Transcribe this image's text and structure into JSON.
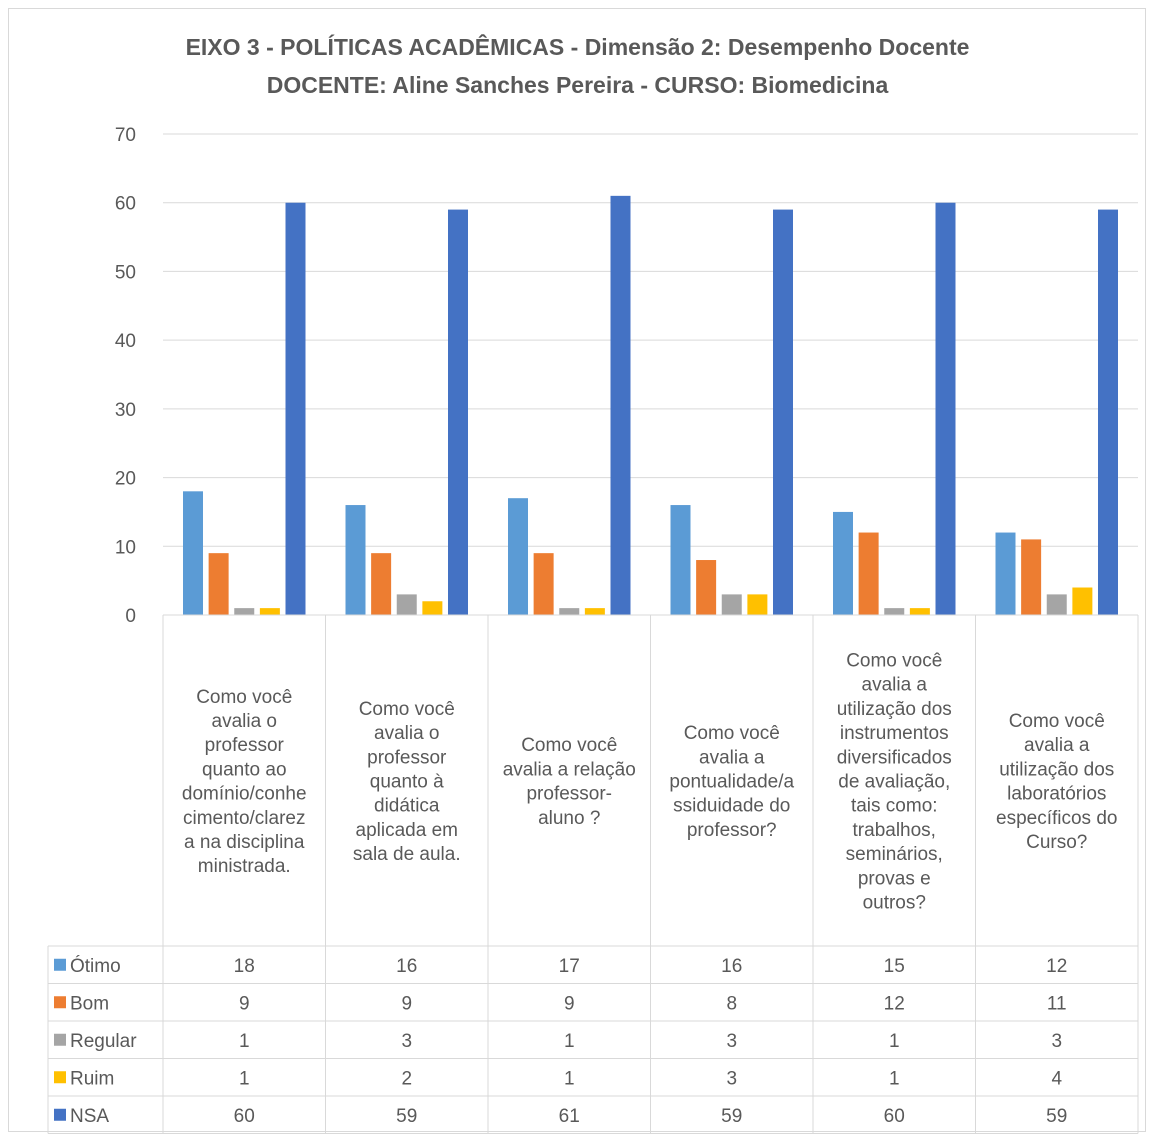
{
  "chart_data": {
    "type": "bar",
    "title": [
      "EIXO 3 - POLÍTICAS ACADÊMICAS - Dimensão 2: Desempenho Docente",
      "DOCENTE: Aline Sanches Pereira - CURSO: Biomedicina"
    ],
    "categories": [
      [
        "Como você",
        "avalia o",
        "professor",
        "quanto ao",
        "domínio/conhe",
        "cimento/clarez",
        "a na disciplina",
        "ministrada."
      ],
      [
        "Como você",
        "avalia o",
        "professor",
        "quanto à",
        "didática",
        "aplicada em",
        "sala de aula."
      ],
      [
        "Como você",
        "avalia a relação",
        "professor-",
        "aluno ?"
      ],
      [
        "Como você",
        "avalia a",
        "pontualidade/a",
        "ssiduidade do",
        "professor?"
      ],
      [
        "Como você",
        "avalia a",
        "utilização dos",
        "instrumentos",
        "diversificados",
        "de avaliação,",
        "tais como:",
        "trabalhos,",
        "seminários,",
        "provas e",
        "outros?"
      ],
      [
        "Como você",
        "avalia a",
        "utilização dos",
        "laboratórios",
        "específicos do",
        "Curso?"
      ]
    ],
    "series": [
      {
        "name": "Ótimo",
        "color": "#5b9bd5",
        "values": [
          18,
          16,
          17,
          16,
          15,
          12
        ]
      },
      {
        "name": "Bom",
        "color": "#ed7d31",
        "values": [
          9,
          9,
          9,
          8,
          12,
          11
        ]
      },
      {
        "name": "Regular",
        "color": "#a5a5a5",
        "values": [
          1,
          3,
          1,
          3,
          1,
          3
        ]
      },
      {
        "name": "Ruim",
        "color": "#ffc000",
        "values": [
          1,
          2,
          1,
          3,
          1,
          4
        ]
      },
      {
        "name": "NSA",
        "color": "#4472c4",
        "values": [
          60,
          59,
          61,
          59,
          60,
          59
        ]
      }
    ],
    "yticks": [
      "0",
      "10",
      "20",
      "30",
      "40",
      "50",
      "60",
      "70"
    ],
    "ylim": [
      0,
      70
    ],
    "grid": true,
    "legend": "data-table"
  }
}
